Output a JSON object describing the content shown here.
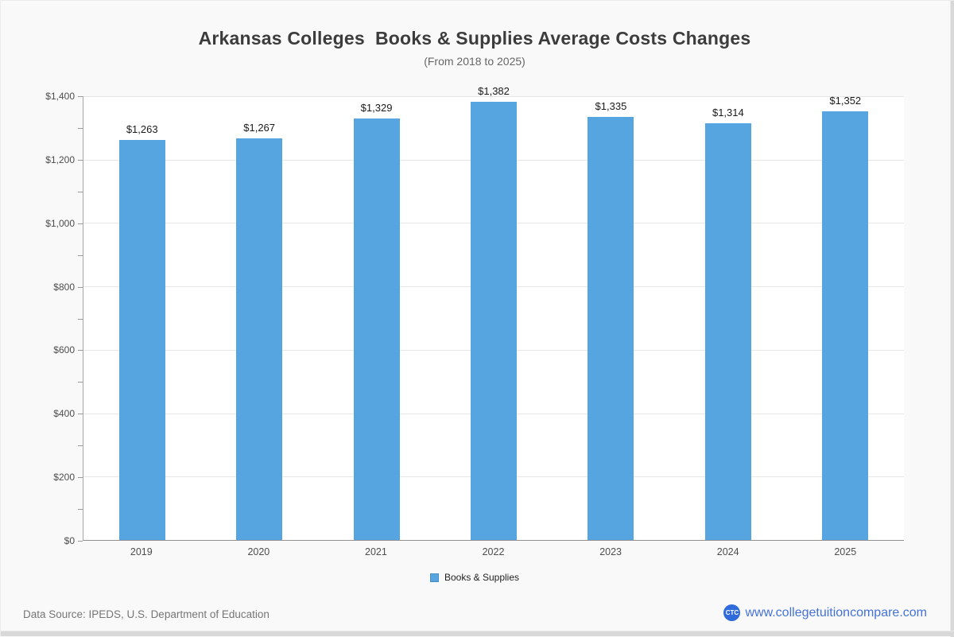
{
  "chart_data": {
    "type": "bar",
    "title": "Arkansas Colleges  Books & Supplies Average Costs Changes",
    "subtitle": "(From 2018 to 2025)",
    "categories": [
      "2019",
      "2020",
      "2021",
      "2022",
      "2023",
      "2024",
      "2025"
    ],
    "series": [
      {
        "name": "Books & Supplies",
        "values": [
          1263,
          1267,
          1329,
          1382,
          1335,
          1314,
          1352
        ],
        "labels": [
          "$1,263",
          "$1,267",
          "$1,329",
          "$1,382",
          "$1,335",
          "$1,314",
          "$1,352"
        ]
      }
    ],
    "xlabel": "",
    "ylabel": "",
    "ylim": [
      0,
      1400
    ],
    "y_major_step": 200,
    "y_minor_step": 100,
    "y_tick_labels": [
      "$1,400",
      "$1,200",
      "$1,000",
      "$800",
      "$600",
      "$400",
      "$200",
      "$0"
    ],
    "grid": true,
    "legend_position": "bottom",
    "bar_color": "#57a5e0"
  },
  "legend": {
    "label": "Books & Supplies"
  },
  "footer": {
    "source": "Data Source: IPEDS, U.S. Department of Education",
    "logo_text": "CTC",
    "website": "www.collegetuitioncompare.com"
  },
  "colors": {
    "bar": "#57a5e0",
    "grid": "#e6e6e6",
    "background": "#f9f9f9",
    "plot_background": "#ffffff",
    "link_blue": "#4472d6",
    "logo_blue": "#2f6bdb"
  }
}
